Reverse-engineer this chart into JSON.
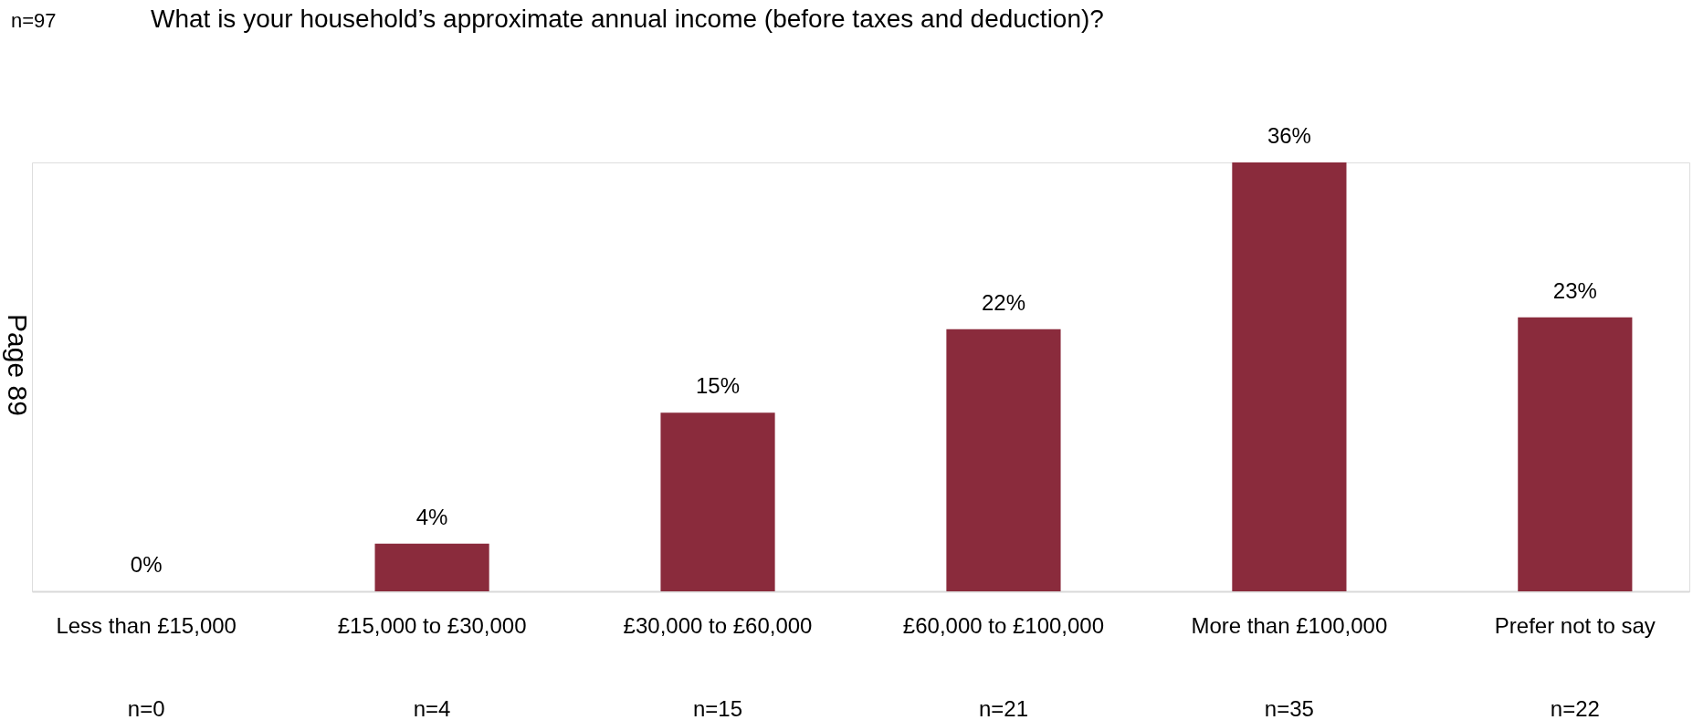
{
  "chart_data": {
    "type": "bar",
    "title": "What is your household’s approximate annual income (before taxes and deduction)?",
    "categories": [
      "Less than £15,000",
      "£15,000 to £30,000",
      "£30,000 to £60,000",
      "£60,000 to £100,000",
      "More than £100,000",
      "Prefer not to say"
    ],
    "values": [
      0,
      4,
      15,
      22,
      36,
      23
    ],
    "value_labels": [
      "0%",
      "4%",
      "15%",
      "22%",
      "36%",
      "23%"
    ],
    "color": "#8a2b3c",
    "annotations": [
      "n=97",
      "Page 89",
      "n=0",
      "n=4",
      "n=15",
      "n=21",
      "n=35",
      "n=22"
    ],
    "grid": false
  }
}
